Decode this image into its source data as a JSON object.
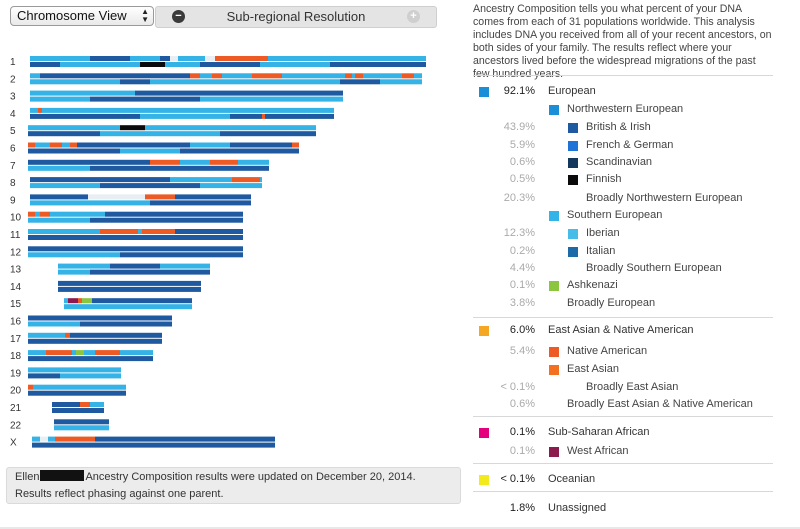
{
  "toolbar": {
    "view_select": "Chromosome View",
    "resolution_label": "Sub-regional Resolution",
    "minus": "−",
    "plus": "+"
  },
  "intro": "Ancestry Composition tells you what percent of your DNA comes from each of 31 populations worldwide. This analysis includes DNA you received from all of your recent ancestors, on both sides of your family. The results reflect where your ancestors lived before the widespread migrations of the past few hundred years.",
  "notice": {
    "name": "Ellen",
    "text": "Ancestry Composition results were updated on December 20, 2014.",
    "line2": "Results reflect phasing against one parent."
  },
  "colors": {
    "european": "#1a8fd8",
    "nw_european": "#1a8fd8",
    "british_irish": "#1f5aa0",
    "french_german": "#1f73d6",
    "scandinavian": "#14375c",
    "finnish": "#0b0b0b",
    "southern_european": "#32b4e8",
    "iberian": "#45bde8",
    "italian": "#1c6aa8",
    "ashkenazi": "#8cc63f",
    "east_asian_native": "#f5a623",
    "native_american": "#ee5a24",
    "east_asian": "#f37021",
    "subsaharan": "#e4007c",
    "west_african": "#8c1a4f",
    "oceanian": "#f2ea1c"
  },
  "ancestry": [
    {
      "level": 0,
      "pct": "92.1%",
      "label": "European",
      "color": "#1a8fd8"
    },
    {
      "level": 1,
      "pct": "",
      "label": "Northwestern European",
      "color": "#1a8fd8"
    },
    {
      "level": 2,
      "pct": "43.9%",
      "label": "British & Irish",
      "color": "#1f5aa0"
    },
    {
      "level": 2,
      "pct": "5.9%",
      "label": "French & German",
      "color": "#1f73d6"
    },
    {
      "level": 2,
      "pct": "0.6%",
      "label": "Scandinavian",
      "color": "#14375c"
    },
    {
      "level": 2,
      "pct": "0.5%",
      "label": "Finnish",
      "color": "#0b0b0b"
    },
    {
      "level": 3,
      "pct": "20.3%",
      "label": "Broadly Northwestern European",
      "color": ""
    },
    {
      "level": 1,
      "pct": "",
      "label": "Southern European",
      "color": "#32b4e8"
    },
    {
      "level": 2,
      "pct": "12.3%",
      "label": "Iberian",
      "color": "#45bde8"
    },
    {
      "level": 2,
      "pct": "0.2%",
      "label": "Italian",
      "color": "#1c6aa8"
    },
    {
      "level": 3,
      "pct": "4.4%",
      "label": "Broadly Southern European",
      "color": ""
    },
    {
      "level": 1,
      "pct": "0.1%",
      "label": "Ashkenazi",
      "color": "#8cc63f"
    },
    {
      "level": 1,
      "pct": "3.8%",
      "label": "Broadly European",
      "color": "",
      "nobox": true
    },
    {
      "level": 0,
      "pct": "6.0%",
      "label": "East Asian & Native American",
      "color": "#f5a623"
    },
    {
      "level": 1,
      "pct": "5.4%",
      "label": "Native American",
      "color": "#ee5a24"
    },
    {
      "level": 1,
      "pct": "",
      "label": "East Asian",
      "color": "#f37021"
    },
    {
      "level": 3,
      "pct": "< 0.1%",
      "label": "Broadly East Asian",
      "color": ""
    },
    {
      "level": 1,
      "pct": "0.6%",
      "label": "Broadly East Asian & Native American",
      "color": "",
      "nobox": true
    },
    {
      "level": 0,
      "pct": "0.1%",
      "label": "Sub-Saharan African",
      "color": "#e4007c"
    },
    {
      "level": 1,
      "pct": "0.1%",
      "label": "West African",
      "color": "#8c1a4f"
    },
    {
      "level": 0,
      "pct": "< 0.1%",
      "label": "Oceanian",
      "color": "#f2ea1c"
    },
    {
      "level": 0,
      "pct": "1.8%",
      "label": "Unassigned",
      "color": ""
    }
  ],
  "chromosomes": [
    {
      "label": "1",
      "start": 30,
      "end": 426,
      "segs": [
        [
          [
            30,
            90,
            "sI"
          ],
          [
            90,
            130,
            "bI"
          ],
          [
            130,
            160,
            "sI"
          ],
          [
            160,
            170,
            "bI"
          ],
          [
            178,
            205,
            "sI"
          ],
          [
            215,
            268,
            "or"
          ],
          [
            268,
            426,
            "sI"
          ]
        ],
        [
          [
            30,
            60,
            "bI"
          ],
          [
            60,
            140,
            "sI"
          ],
          [
            140,
            165,
            "fi"
          ],
          [
            165,
            200,
            "sI"
          ],
          [
            200,
            260,
            "bI"
          ],
          [
            260,
            330,
            "sI"
          ],
          [
            330,
            426,
            "bI"
          ]
        ]
      ]
    },
    {
      "label": "2",
      "start": 30,
      "end": 422,
      "segs": [
        [
          [
            30,
            40,
            "sI"
          ],
          [
            40,
            190,
            "bI"
          ],
          [
            190,
            200,
            "or"
          ],
          [
            200,
            212,
            "sI"
          ],
          [
            212,
            222,
            "or"
          ],
          [
            222,
            252,
            "sI"
          ],
          [
            252,
            282,
            "or"
          ],
          [
            282,
            345,
            "sI"
          ],
          [
            345,
            352,
            "or"
          ],
          [
            352,
            355,
            "sI"
          ],
          [
            355,
            363,
            "or"
          ],
          [
            363,
            402,
            "sI"
          ],
          [
            402,
            414,
            "or"
          ],
          [
            414,
            422,
            "sI"
          ]
        ],
        [
          [
            30,
            120,
            "sI"
          ],
          [
            120,
            150,
            "bI"
          ],
          [
            150,
            340,
            "sI"
          ],
          [
            340,
            380,
            "bI"
          ],
          [
            380,
            422,
            "sI"
          ]
        ]
      ]
    },
    {
      "label": "3",
      "start": 30,
      "end": 343,
      "segs": [
        [
          [
            30,
            135,
            "sI"
          ],
          [
            135,
            343,
            "bI"
          ]
        ],
        [
          [
            30,
            90,
            "sI"
          ],
          [
            90,
            200,
            "bI"
          ],
          [
            200,
            343,
            "sI"
          ]
        ]
      ]
    },
    {
      "label": "4",
      "start": 30,
      "end": 334,
      "segs": [
        [
          [
            30,
            38,
            "sI"
          ],
          [
            38,
            42,
            "or"
          ],
          [
            42,
            334,
            "sI"
          ]
        ],
        [
          [
            30,
            140,
            "bI"
          ],
          [
            140,
            230,
            "sI"
          ],
          [
            230,
            262,
            "bI"
          ],
          [
            262,
            265,
            "or"
          ],
          [
            265,
            334,
            "bI"
          ]
        ]
      ]
    },
    {
      "label": "5",
      "start": 28,
      "end": 316,
      "segs": [
        [
          [
            28,
            120,
            "sI"
          ],
          [
            120,
            145,
            "fi"
          ],
          [
            145,
            316,
            "sI"
          ]
        ],
        [
          [
            28,
            100,
            "bI"
          ],
          [
            100,
            220,
            "sI"
          ],
          [
            220,
            316,
            "bI"
          ]
        ]
      ]
    },
    {
      "label": "6",
      "start": 28,
      "end": 299,
      "segs": [
        [
          [
            28,
            35,
            "or"
          ],
          [
            35,
            50,
            "sI"
          ],
          [
            50,
            62,
            "or"
          ],
          [
            62,
            70,
            "sI"
          ],
          [
            70,
            77,
            "or"
          ],
          [
            77,
            190,
            "bI"
          ],
          [
            190,
            230,
            "sI"
          ],
          [
            230,
            292,
            "bI"
          ],
          [
            292,
            299,
            "or"
          ]
        ],
        [
          [
            28,
            120,
            "bI"
          ],
          [
            120,
            180,
            "sI"
          ],
          [
            180,
            299,
            "bI"
          ]
        ]
      ]
    },
    {
      "label": "7",
      "start": 28,
      "end": 269,
      "segs": [
        [
          [
            28,
            150,
            "bI"
          ],
          [
            150,
            180,
            "or"
          ],
          [
            180,
            210,
            "sI"
          ],
          [
            210,
            238,
            "or"
          ],
          [
            238,
            269,
            "sI"
          ]
        ],
        [
          [
            28,
            90,
            "sI"
          ],
          [
            90,
            269,
            "bI"
          ]
        ]
      ]
    },
    {
      "label": "8",
      "start": 30,
      "end": 262,
      "segs": [
        [
          [
            30,
            170,
            "bI"
          ],
          [
            170,
            232,
            "sI"
          ],
          [
            232,
            260,
            "or"
          ],
          [
            260,
            262,
            "sI"
          ]
        ],
        [
          [
            30,
            100,
            "sI"
          ],
          [
            100,
            200,
            "bI"
          ],
          [
            200,
            262,
            "sI"
          ]
        ]
      ]
    },
    {
      "label": "9",
      "start": 30,
      "end": 251,
      "segs": [
        [
          [
            30,
            88,
            "bI"
          ],
          [
            145,
            175,
            "or"
          ],
          [
            175,
            251,
            "bI"
          ]
        ],
        [
          [
            30,
            150,
            "sI"
          ],
          [
            150,
            251,
            "bI"
          ]
        ]
      ]
    },
    {
      "label": "10",
      "start": 28,
      "end": 243,
      "segs": [
        [
          [
            28,
            35,
            "or"
          ],
          [
            35,
            40,
            "sI"
          ],
          [
            40,
            50,
            "or"
          ],
          [
            50,
            105,
            "sI"
          ],
          [
            105,
            243,
            "bI"
          ]
        ],
        [
          [
            28,
            90,
            "sI"
          ],
          [
            90,
            243,
            "bI"
          ]
        ]
      ]
    },
    {
      "label": "11",
      "start": 28,
      "end": 243,
      "segs": [
        [
          [
            28,
            100,
            "sI"
          ],
          [
            100,
            138,
            "or"
          ],
          [
            138,
            142,
            "sI"
          ],
          [
            142,
            175,
            "or"
          ],
          [
            175,
            195,
            "bI"
          ],
          [
            195,
            243,
            "bI"
          ]
        ],
        [
          [
            28,
            243,
            "bI"
          ]
        ]
      ]
    },
    {
      "label": "12",
      "start": 28,
      "end": 243,
      "segs": [
        [
          [
            28,
            140,
            "bI"
          ],
          [
            140,
            243,
            "bI"
          ]
        ],
        [
          [
            28,
            120,
            "sI"
          ],
          [
            120,
            243,
            "bI"
          ]
        ]
      ]
    },
    {
      "label": "13",
      "start": 58,
      "end": 210,
      "segs": [
        [
          [
            58,
            110,
            "sI"
          ],
          [
            110,
            160,
            "bI"
          ],
          [
            160,
            210,
            "sI"
          ]
        ],
        [
          [
            58,
            90,
            "sI"
          ],
          [
            90,
            210,
            "bI"
          ]
        ]
      ]
    },
    {
      "label": "14",
      "start": 58,
      "end": 201,
      "segs": [
        [
          [
            58,
            140,
            "bI"
          ],
          [
            140,
            201,
            "bI"
          ]
        ],
        [
          [
            58,
            201,
            "bI"
          ]
        ]
      ]
    },
    {
      "label": "15",
      "start": 64,
      "end": 192,
      "segs": [
        [
          [
            64,
            68,
            "sI"
          ],
          [
            68,
            78,
            "wa"
          ],
          [
            78,
            82,
            "or"
          ],
          [
            82,
            92,
            "as"
          ],
          [
            92,
            192,
            "bI"
          ]
        ],
        [
          [
            64,
            192,
            "sI"
          ]
        ]
      ]
    },
    {
      "label": "16",
      "start": 28,
      "end": 172,
      "segs": [
        [
          [
            28,
            95,
            "bI"
          ],
          [
            95,
            172,
            "bI"
          ]
        ],
        [
          [
            28,
            80,
            "sI"
          ],
          [
            80,
            172,
            "bI"
          ]
        ]
      ]
    },
    {
      "label": "17",
      "start": 28,
      "end": 162,
      "segs": [
        [
          [
            28,
            65,
            "sI"
          ],
          [
            65,
            70,
            "or"
          ],
          [
            70,
            162,
            "bI"
          ]
        ],
        [
          [
            28,
            162,
            "bI"
          ]
        ]
      ]
    },
    {
      "label": "18",
      "start": 28,
      "end": 153,
      "segs": [
        [
          [
            28,
            46,
            "sI"
          ],
          [
            46,
            72,
            "or"
          ],
          [
            72,
            76,
            "sI"
          ],
          [
            76,
            84,
            "as"
          ],
          [
            84,
            95,
            "sI"
          ],
          [
            95,
            120,
            "or"
          ],
          [
            120,
            153,
            "sI"
          ]
        ],
        [
          [
            28,
            100,
            "bI"
          ],
          [
            100,
            153,
            "bI"
          ]
        ]
      ]
    },
    {
      "label": "19",
      "start": 28,
      "end": 121,
      "segs": [
        [
          [
            28,
            121,
            "sI"
          ]
        ],
        [
          [
            28,
            60,
            "bI"
          ],
          [
            60,
            121,
            "sI"
          ]
        ]
      ]
    },
    {
      "label": "20",
      "start": 28,
      "end": 126,
      "segs": [
        [
          [
            28,
            33,
            "or"
          ],
          [
            33,
            126,
            "sI"
          ]
        ],
        [
          [
            28,
            126,
            "bI"
          ]
        ]
      ]
    },
    {
      "label": "21",
      "start": 52,
      "end": 104,
      "segs": [
        [
          [
            52,
            80,
            "bI"
          ],
          [
            80,
            90,
            "or"
          ],
          [
            90,
            104,
            "sI"
          ]
        ],
        [
          [
            52,
            104,
            "bI"
          ]
        ]
      ]
    },
    {
      "label": "22",
      "start": 54,
      "end": 109,
      "segs": [
        [
          [
            54,
            109,
            "bI"
          ]
        ],
        [
          [
            54,
            109,
            "sI"
          ]
        ]
      ]
    },
    {
      "label": "X",
      "start": 32,
      "end": 275,
      "segs": [
        [
          [
            32,
            40,
            "sI"
          ],
          [
            48,
            55,
            "sI"
          ],
          [
            55,
            62,
            "or"
          ],
          [
            62,
            95,
            "or"
          ],
          [
            95,
            275,
            "bI"
          ]
        ],
        [
          [
            32,
            275,
            "bI"
          ]
        ]
      ]
    }
  ],
  "segcolors": {
    "bI": "#1f5aa0",
    "sI": "#35b3e6",
    "or": "#ee5a24",
    "fi": "#0b0b0b",
    "wa": "#8c1a4f",
    "as": "#8cc63f"
  }
}
